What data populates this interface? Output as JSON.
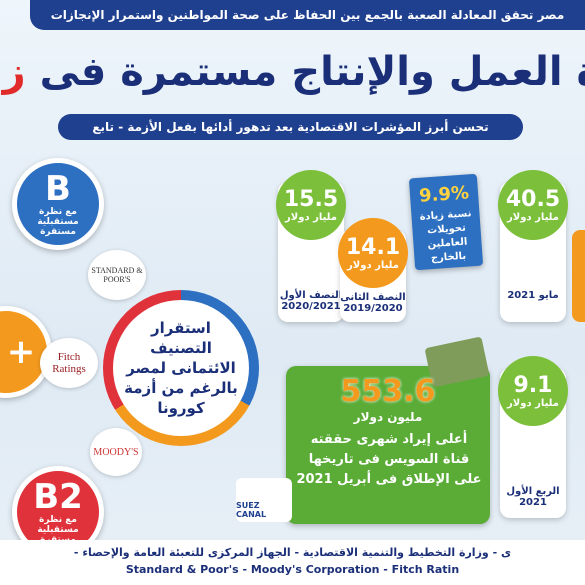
{
  "banner": "مصر تحقق المعادلة الصعبة بالجمع بين الحفاظ على صحة المواطنين واستمرار الإنجازات",
  "title": {
    "main": "برة العمل والإنتاج مستمرة فى",
    "highlight": "زمن الكورو"
  },
  "subtitle": "تحسن أبرز المؤشرات الاقتصادية بعد تدهور أدائها بفعل الأزمة - تابع",
  "ratings": [
    {
      "grade": "B",
      "outlook": "مع نظرة مستقبلية مستقرة",
      "agency": "STANDARD & POOR'S"
    },
    {
      "grade": "+",
      "agency": "Fitch Ratings"
    },
    {
      "grade": "B2",
      "outlook": "مع نظرة مستقبلية مستقرة",
      "agency": "MOODY'S"
    }
  ],
  "center_text": "استقرار التصنيف الائتمانى لمصر بالرغم من أزمة كورونا",
  "indicators": [
    {
      "value": "15.5",
      "unit": "مليار دولار",
      "label": "النصف الأول 2020/2021"
    },
    {
      "value": "14.1",
      "unit": "مليار دولار",
      "label": "النصف الثانى 2019/2020"
    },
    {
      "value": "9.9%",
      "label": "نسبة زيادة تحويلات العاملين بالخارج"
    },
    {
      "value": "40.5",
      "unit": "مليار دولار",
      "label": "مايو 2021"
    },
    {
      "value": "9.1",
      "unit": "مليار دولار",
      "label": "الربع الأول 2021"
    }
  ],
  "suez": {
    "value": "553.6",
    "unit": "مليون دولار",
    "text": "أعلى إيراد شهرى حققته قناة السويس فى تاريخها على الإطلاق فى أبريل 2021",
    "logo": "SUEZ CANAL"
  },
  "footer": [
    "ى - وزارة التخطيط والتنمية الاقتصادية - الجهاز المركزى للتعبئة العامة والإحصاء -",
    "Standard & Poor's - Moody's Corporation - Fitch Ratin"
  ]
}
